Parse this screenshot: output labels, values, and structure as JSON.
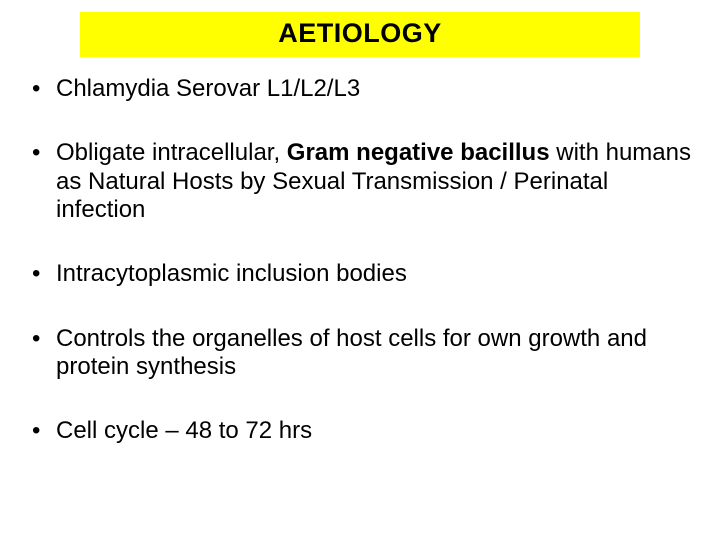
{
  "title": "AETIOLOGY",
  "bullets": [
    {
      "pre": "Chlamydia Serovar L1/L2/L3",
      "bold": "",
      "post": ""
    },
    {
      "pre": "Obligate intracellular, ",
      "bold": "Gram negative bacillus",
      "post": " with humans as Natural Hosts by Sexual Transmission / Perinatal infection"
    },
    {
      "pre": "Intracytoplasmic inclusion bodies",
      "bold": "",
      "post": ""
    },
    {
      "pre": "Controls the organelles of host cells for own growth and protein synthesis",
      "bold": "",
      "post": ""
    },
    {
      "pre": "Cell cycle – 48 to 72 hrs",
      "bold": "",
      "post": ""
    }
  ],
  "colors": {
    "title_bg": "#ffff00",
    "text": "#000000",
    "slide_bg": "#ffffff"
  },
  "typography": {
    "title_fontsize": 27,
    "title_weight": "bold",
    "body_fontsize": 24,
    "font_family": "Arial"
  }
}
